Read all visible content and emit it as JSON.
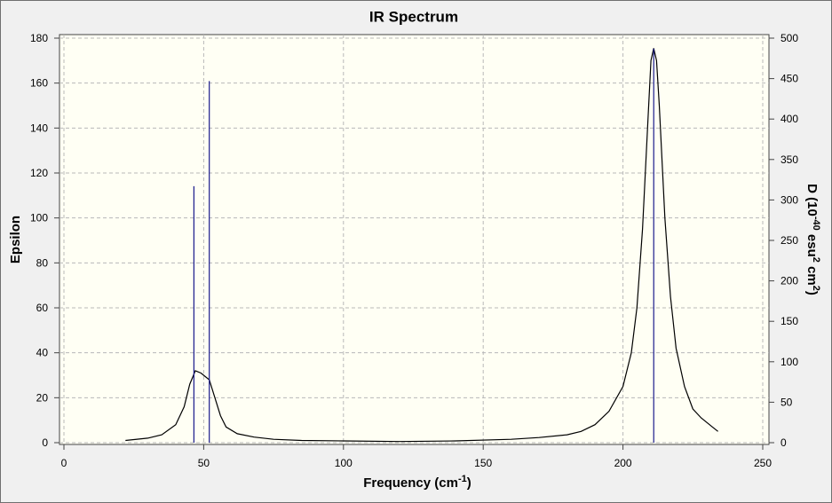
{
  "chart_data": {
    "type": "line",
    "title": "IR Spectrum",
    "xlabel_parts": [
      "Frequency (cm",
      "-1",
      ")"
    ],
    "ylabel": "Epsilon",
    "y2label_parts": [
      "D (10",
      "-40",
      " esu",
      "2",
      " cm",
      "2",
      ")"
    ],
    "xlim": [
      0,
      250
    ],
    "xticks": [
      0,
      50,
      100,
      150,
      200,
      250
    ],
    "ylim": [
      0,
      180
    ],
    "yticks": [
      0,
      20,
      40,
      60,
      80,
      100,
      120,
      140,
      160,
      180
    ],
    "y2lim": [
      0,
      500
    ],
    "y2ticks": [
      0,
      50,
      100,
      150,
      200,
      250,
      300,
      350,
      400,
      450,
      500
    ],
    "grid": true,
    "series": [
      {
        "color": "#000000",
        "x": [
          22,
          30,
          35,
          40,
          43,
          45,
          47,
          49,
          52,
          54,
          56,
          58,
          62,
          68,
          75,
          85,
          100,
          120,
          140,
          160,
          170,
          180,
          185,
          190,
          195,
          200,
          203,
          205,
          207,
          209,
          210,
          211,
          212,
          213,
          215,
          217,
          219,
          222,
          225,
          228,
          232,
          234
        ],
        "values": [
          1,
          2,
          3.5,
          8,
          16,
          26,
          32,
          31,
          28,
          20,
          12,
          7,
          4,
          2.5,
          1.5,
          1,
          0.8,
          0.5,
          0.8,
          1.5,
          2.3,
          3.5,
          5,
          8,
          14,
          25,
          40,
          60,
          95,
          145,
          170,
          175.5,
          170,
          150,
          100,
          65,
          42,
          25,
          15,
          11,
          7,
          5
        ]
      },
      {
        "color": "#1a1a8c",
        "axis": "y2",
        "style": "stick",
        "x": [
          46.5,
          52,
          211
        ],
        "values": [
          317,
          447,
          487
        ]
      }
    ]
  }
}
